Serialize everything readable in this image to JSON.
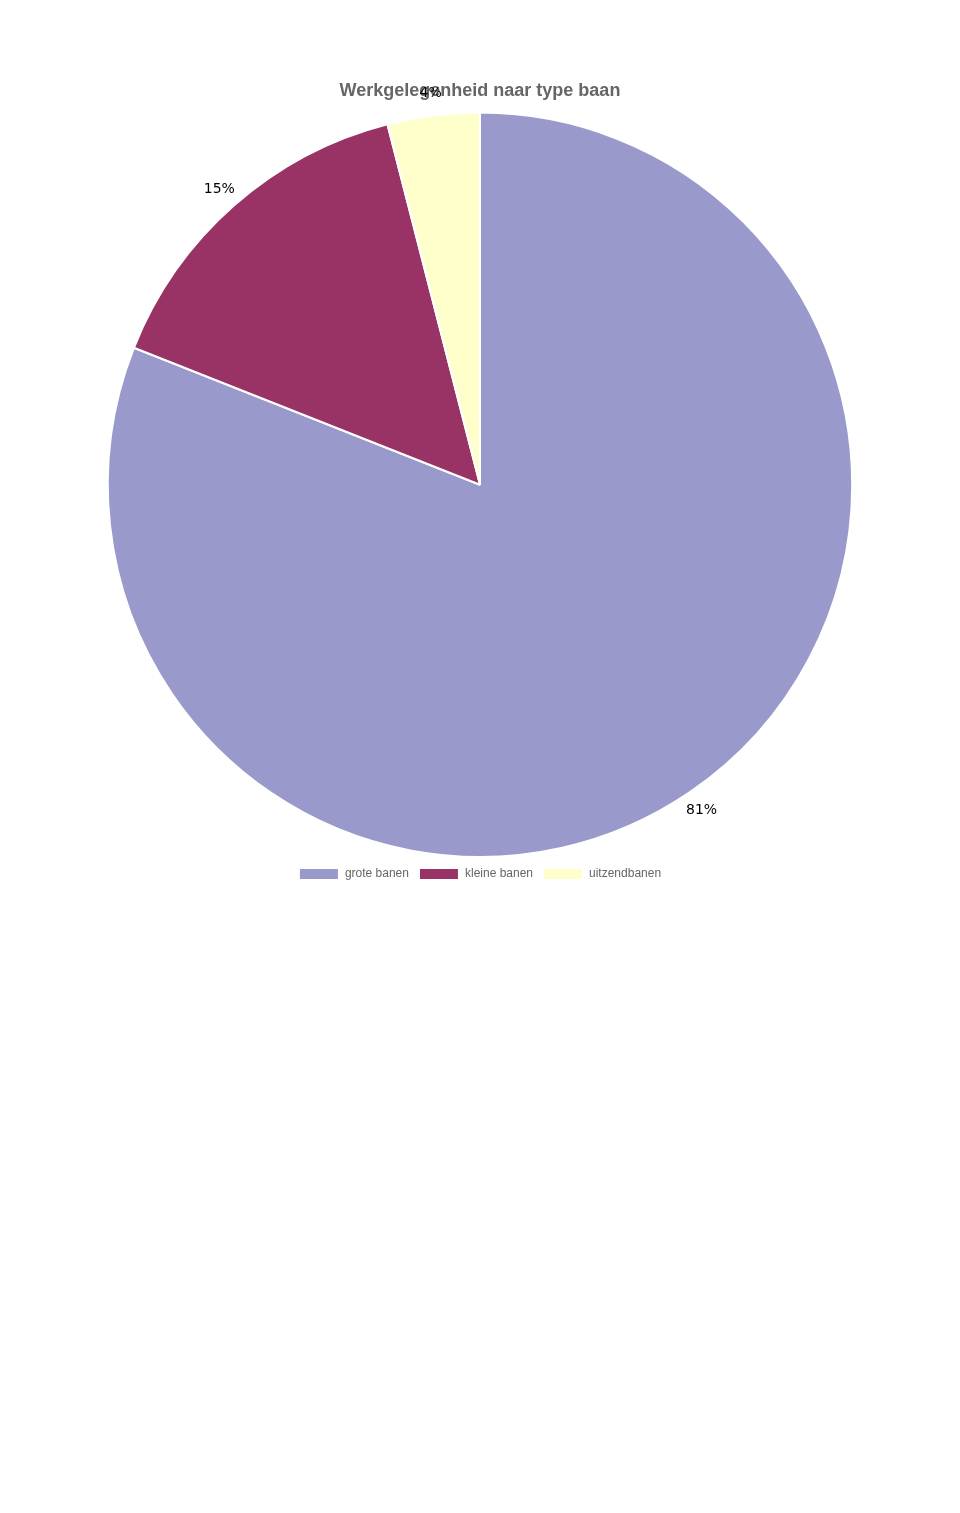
{
  "chart_data": {
    "type": "pie",
    "title": "Werkgelegenheid naar type baan",
    "categories": [
      "grote banen",
      "kleine banen",
      "uitzendbanen"
    ],
    "values": [
      81,
      15,
      4
    ],
    "value_labels": [
      "81%",
      "15%",
      "4%"
    ],
    "colors": [
      "#9999cc",
      "#993366",
      "#ffffcc"
    ],
    "data_labels": true,
    "legend": "bottom"
  }
}
